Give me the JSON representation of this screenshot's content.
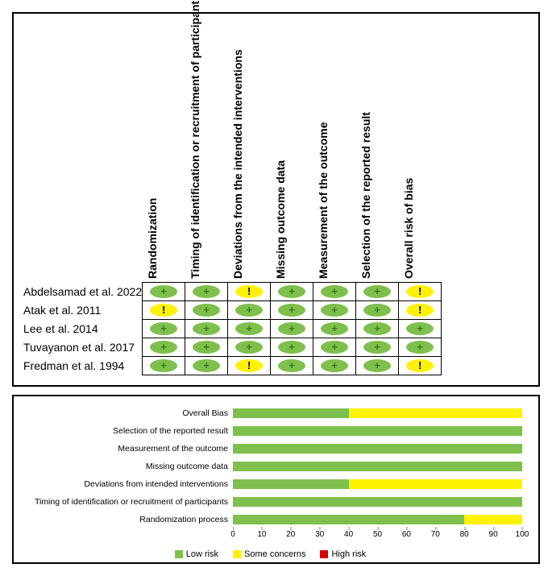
{
  "colors": {
    "low": "#7fbf4d",
    "some": "#fff200",
    "high": "#d40000",
    "plus": "#2e7d12",
    "bang": "#000000",
    "border": "#000000"
  },
  "symbols": {
    "low": "+",
    "some": "!",
    "high": "−"
  },
  "domains": [
    "Randomization",
    "Timing of identification or recruitment of participants",
    "Deviations from the intended interventions",
    "Missing outcome data",
    "Measurement of the outcome",
    "Selection of the reported result",
    "Overall risk of bias"
  ],
  "studies": [
    {
      "label": "Abdelsamad et al. 2022",
      "ratings": [
        "low",
        "low",
        "some",
        "low",
        "low",
        "low",
        "some"
      ]
    },
    {
      "label": "Atak et al. 2011",
      "ratings": [
        "some",
        "low",
        "low",
        "low",
        "low",
        "low",
        "some"
      ]
    },
    {
      "label": "Lee et al. 2014",
      "ratings": [
        "low",
        "low",
        "low",
        "low",
        "low",
        "low",
        "low"
      ]
    },
    {
      "label": "Tuvayanon et al. 2017",
      "ratings": [
        "low",
        "low",
        "low",
        "low",
        "low",
        "low",
        "low"
      ]
    },
    {
      "label": "Fredman et al. 1994",
      "ratings": [
        "low",
        "low",
        "some",
        "low",
        "low",
        "low",
        "some"
      ]
    }
  ],
  "barChart": {
    "rows": [
      {
        "label": "Overall Bias",
        "low": 40,
        "some": 60,
        "high": 0
      },
      {
        "label": "Selection of the reported result",
        "low": 100,
        "some": 0,
        "high": 0
      },
      {
        "label": "Measurement of the outcome",
        "low": 100,
        "some": 0,
        "high": 0
      },
      {
        "label": "Missing outcome data",
        "low": 100,
        "some": 0,
        "high": 0
      },
      {
        "label": "Deviations from intended interventions",
        "low": 40,
        "some": 60,
        "high": 0
      },
      {
        "label": "Timing of identification or recruitment of participants",
        "low": 100,
        "some": 0,
        "high": 0
      },
      {
        "label": "Randomization process",
        "low": 80,
        "some": 20,
        "high": 0
      }
    ],
    "xmax": 100,
    "xstep": 10
  },
  "legend": [
    {
      "label": "Low risk",
      "key": "low"
    },
    {
      "label": "Some concerns",
      "key": "some"
    },
    {
      "label": "High risk",
      "key": "high"
    }
  ]
}
